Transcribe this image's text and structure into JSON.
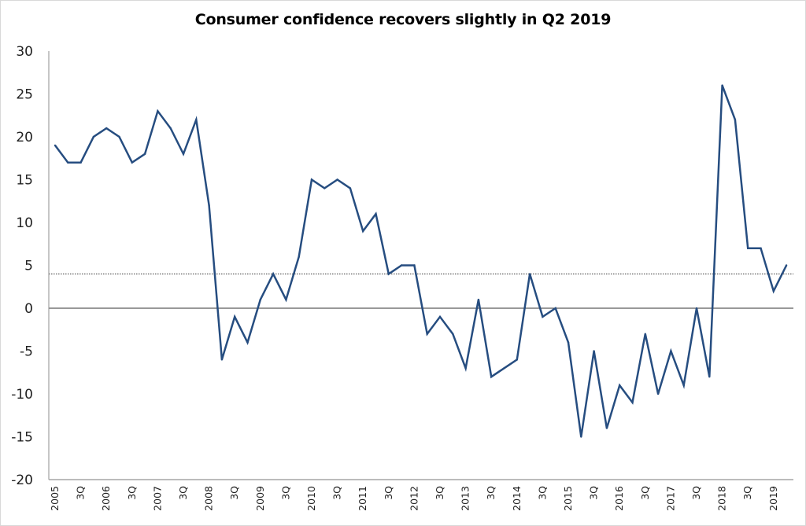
{
  "chart_data": {
    "type": "line",
    "title": "Consumer confidence recovers slightly in Q2 2019",
    "xlabel": "",
    "ylabel": "",
    "ylim": [
      -20,
      30
    ],
    "yticks": [
      30,
      25,
      20,
      15,
      10,
      5,
      0,
      -5,
      -10,
      -15,
      -20
    ],
    "grid": false,
    "legend": "none",
    "x_tick_labels": [
      "2005",
      "3Q",
      "2006",
      "3Q",
      "2007",
      "3Q",
      "2008",
      "3Q",
      "2009",
      "3Q",
      "2010",
      "3Q",
      "2011",
      "3Q",
      "2012",
      "3Q",
      "2013",
      "3Q",
      "2014",
      "3Q",
      "2015",
      "3Q",
      "2016",
      "3Q",
      "2017",
      "3Q",
      "2018",
      "3Q",
      "2019"
    ],
    "x": [
      "2005Q1",
      "2005Q2",
      "2005Q3",
      "2005Q4",
      "2006Q1",
      "2006Q2",
      "2006Q3",
      "2006Q4",
      "2007Q1",
      "2007Q2",
      "2007Q3",
      "2007Q4",
      "2008Q1",
      "2008Q2",
      "2008Q3",
      "2008Q4",
      "2009Q1",
      "2009Q2",
      "2009Q3",
      "2009Q4",
      "2010Q1",
      "2010Q2",
      "2010Q3",
      "2010Q4",
      "2011Q1",
      "2011Q2",
      "2011Q3",
      "2011Q4",
      "2012Q1",
      "2012Q2",
      "2012Q3",
      "2012Q4",
      "2013Q1",
      "2013Q2",
      "2013Q3",
      "2013Q4",
      "2014Q1",
      "2014Q2",
      "2014Q3",
      "2014Q4",
      "2015Q1",
      "2015Q2",
      "2015Q3",
      "2015Q4",
      "2016Q1",
      "2016Q2",
      "2016Q3",
      "2016Q4",
      "2017Q1",
      "2017Q2",
      "2017Q3",
      "2017Q4",
      "2018Q1",
      "2018Q2",
      "2018Q3",
      "2018Q4",
      "2019Q1",
      "2019Q2"
    ],
    "series": [
      {
        "name": "Consumer confidence",
        "color": "#264d80",
        "values": [
          19,
          17,
          17,
          20,
          21,
          20,
          17,
          18,
          23,
          21,
          18,
          22,
          12,
          -6,
          -1,
          -4,
          1,
          4,
          1,
          6,
          15,
          14,
          15,
          14,
          9,
          11,
          4,
          5,
          5,
          -3,
          -1,
          -3,
          -7,
          1,
          -8,
          -7,
          -6,
          4,
          -1,
          0,
          -4,
          -15,
          -5,
          -14,
          -9,
          -11,
          -3,
          -10,
          -5,
          -9,
          0,
          -8,
          26,
          22,
          7,
          7,
          2,
          5
        ]
      }
    ],
    "reference_lines": [
      {
        "name": "zero-line",
        "value": 0,
        "style": "solid",
        "color": "#333333"
      },
      {
        "name": "average-line",
        "value": 4,
        "style": "dotted",
        "color": "#333333"
      }
    ]
  }
}
